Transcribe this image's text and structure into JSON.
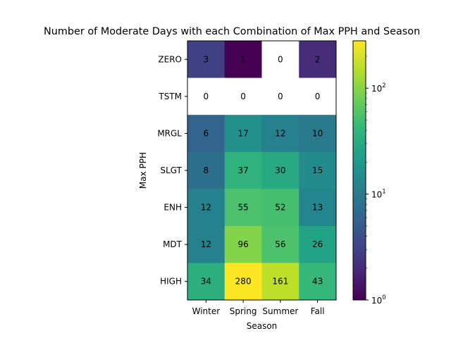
{
  "chart_data": {
    "type": "heatmap",
    "title": "Number of Moderate Days with each Combination of Max PPH and Season",
    "xlabel": "Season",
    "ylabel": "Max PPH",
    "x_categories": [
      "Winter",
      "Spring",
      "Summer",
      "Fall"
    ],
    "y_categories": [
      "ZERO",
      "TSTM",
      "MRGL",
      "SLGT",
      "ENH",
      "MDT",
      "HIGH"
    ],
    "values": [
      [
        3,
        1,
        0,
        2
      ],
      [
        0,
        0,
        0,
        0
      ],
      [
        6,
        17,
        12,
        10
      ],
      [
        8,
        37,
        30,
        15
      ],
      [
        12,
        55,
        52,
        13
      ],
      [
        12,
        96,
        56,
        26
      ],
      [
        34,
        280,
        161,
        43
      ]
    ],
    "colorbar": {
      "scale": "log",
      "range": [
        1,
        280
      ],
      "colormap": "viridis",
      "tick_labels": [
        "10^0",
        "10^1",
        "10^2"
      ],
      "tick_values": [
        1,
        10,
        100
      ]
    },
    "zero_cells_color": "#ffffff"
  }
}
